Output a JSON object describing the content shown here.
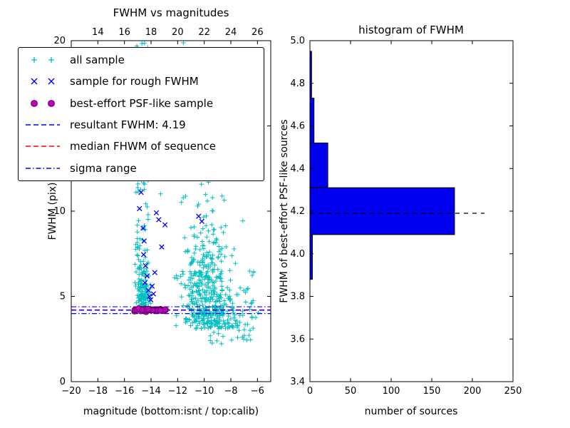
{
  "figure": {
    "background": "#ffffff"
  },
  "legend": {
    "items": [
      {
        "label": "all sample",
        "marker": "plus",
        "color": "#00bfbf"
      },
      {
        "label": "sample for rough FWHM",
        "marker": "x",
        "color": "#0000ff"
      },
      {
        "label": "best-effort PSF-like sample",
        "marker": "circle",
        "color": "#bf00bf",
        "edge": "#4a004a"
      },
      {
        "label": "resultant FWHM: 4.19",
        "marker": "dashed",
        "color": "#0000ff"
      },
      {
        "label": "median FHWM of sequence",
        "marker": "dashed",
        "color": "#ff0000"
      },
      {
        "label": "sigma range",
        "marker": "dashdot",
        "color": "#0000ff"
      }
    ]
  },
  "chart_data": [
    {
      "type": "scatter",
      "title": "FWHM vs magnitudes",
      "xlabel": "magnitude (bottom:isnt / top:calib)",
      "ylabel": "FWHM (pix)",
      "xlim": [
        -20,
        -5
      ],
      "ylim": [
        0,
        20
      ],
      "top_xlim": [
        12,
        27
      ],
      "x_ticks": {
        "values": [
          -20,
          -18,
          -16,
          -14,
          -12,
          -10,
          -8,
          -6
        ],
        "labels": [
          "−20",
          "−18",
          "−16",
          "−14",
          "−12",
          "−10",
          "−8",
          "−6"
        ]
      },
      "top_ticks": {
        "values": [
          14,
          16,
          18,
          20,
          22,
          24,
          26
        ],
        "labels": [
          "14",
          "16",
          "18",
          "20",
          "22",
          "24",
          "26"
        ]
      },
      "y_ticks": {
        "values": [
          0,
          5,
          10,
          15,
          20
        ],
        "labels": [
          "0",
          "5",
          "10",
          "15",
          "20"
        ]
      },
      "seed": 42,
      "series": {
        "all_sample": {
          "marker": "plus",
          "color": "#00bfbf",
          "clusters": [
            {
              "name": "main-cloud",
              "n": 430,
              "x": {
                "dist": "gauss",
                "mu": -9.85,
                "sigma": 1.05,
                "min": -12.9,
                "max": -6.0
              },
              "y": {
                "dist": "foldgauss",
                "base": 3.1,
                "scale": 2.7,
                "min": 2.0,
                "max": 20.0
              }
            },
            {
              "name": "bright-column",
              "n": 120,
              "x": {
                "dist": "uniform",
                "min": -15.15,
                "max": -14.2
              },
              "y": {
                "dist": "uniform",
                "min": 4.15,
                "max": 20.0
              }
            },
            {
              "name": "column-base",
              "n": 110,
              "x": {
                "dist": "gauss",
                "mu": -14.6,
                "sigma": 0.25,
                "min": -15.2,
                "max": -13.9
              },
              "y": {
                "dist": "foldgauss",
                "base": 4.3,
                "scale": 1.3,
                "min": 4.2,
                "max": 9.5
              }
            },
            {
              "name": "high-sparse",
              "n": 60,
              "x": {
                "dist": "uniform",
                "min": -13.6,
                "max": -8.4
              },
              "y": {
                "dist": "uniform",
                "min": 10.0,
                "max": 20.0
              }
            },
            {
              "name": "low-tail",
              "n": 40,
              "x": {
                "dist": "uniform",
                "min": -9.7,
                "max": -6.4
              },
              "y": {
                "dist": "uniform",
                "min": 2.2,
                "max": 4.3
              }
            },
            {
              "name": "right-sparse",
              "n": 22,
              "x": {
                "dist": "uniform",
                "min": -7.7,
                "max": -5.9
              },
              "y": {
                "dist": "uniform",
                "min": 2.6,
                "max": 6.5
              }
            }
          ]
        },
        "rough_fwhm": {
          "marker": "x",
          "color": "#0000ff",
          "points": [
            [
              -14.9,
              12.8
            ],
            [
              -14.82,
              12.0
            ],
            [
              -14.75,
              11.1
            ],
            [
              -14.87,
              10.15
            ],
            [
              -14.6,
              9.0
            ],
            [
              -14.52,
              8.25
            ],
            [
              -14.56,
              7.45
            ],
            [
              -14.42,
              6.8
            ],
            [
              -14.3,
              6.2
            ],
            [
              -14.46,
              5.8
            ],
            [
              -14.2,
              5.35
            ],
            [
              -14.12,
              5.0
            ],
            [
              -13.92,
              5.6
            ],
            [
              -13.72,
              6.4
            ],
            [
              -13.6,
              9.9
            ],
            [
              -13.42,
              9.5
            ],
            [
              -13.2,
              7.9
            ],
            [
              -12.95,
              9.2
            ],
            [
              -10.42,
              9.7
            ],
            [
              -10.18,
              9.4
            ],
            [
              -14.02,
              4.8
            ],
            [
              -13.82,
              5.15
            ]
          ]
        },
        "psf_like": {
          "marker": "circle",
          "fill": "#bf00bf",
          "edge": "#4a004a",
          "band": {
            "x_min": -15.25,
            "x_max": -12.85,
            "y_center": 4.21,
            "y_sigma": 0.05,
            "n": 42
          }
        }
      },
      "lines": {
        "resultant_fwhm": {
          "value": 4.19,
          "style": "dashed",
          "color": "#0000ff"
        },
        "median_fwhm": {
          "value": 4.21,
          "style": "dashed",
          "color": "#ff0000"
        },
        "sigma_range": {
          "values": [
            3.99,
            4.39
          ],
          "style": "dashdot",
          "color": "#0000ff"
        }
      }
    },
    {
      "type": "bar",
      "orientation": "horizontal",
      "title": "histogram of FWHM",
      "xlabel": "number of sources",
      "ylabel": "FWHM of best-effort PSF-like sources",
      "xlim": [
        0,
        250
      ],
      "ylim": [
        3.4,
        5.0
      ],
      "x_ticks": {
        "values": [
          0,
          50,
          100,
          150,
          200,
          250
        ],
        "labels": [
          "0",
          "50",
          "100",
          "150",
          "200",
          "250"
        ]
      },
      "y_ticks": {
        "values": [
          3.4,
          3.6,
          3.8,
          4.0,
          4.2,
          4.4,
          4.6,
          4.8,
          5.0
        ],
        "labels": [
          "3.4",
          "3.6",
          "3.8",
          "4.0",
          "4.2",
          "4.4",
          "4.6",
          "4.8",
          "5.0"
        ]
      },
      "bin_edges": [
        3.88,
        4.09,
        4.31,
        4.52,
        4.73,
        4.95
      ],
      "counts": [
        3,
        178,
        22,
        5,
        2
      ],
      "bar_color": "#0000ee",
      "bar_edge": "#000000",
      "median_line": {
        "value": 4.19,
        "x_end": 215,
        "style": "dashed",
        "color": "#000000"
      }
    }
  ]
}
